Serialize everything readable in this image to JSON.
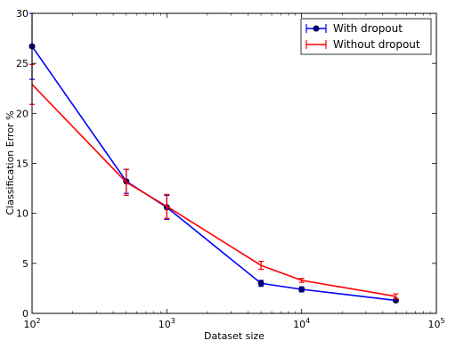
{
  "chart_data": {
    "type": "line",
    "title": "",
    "xlabel": "Dataset size",
    "ylabel": "Classification Error %",
    "xscale": "log",
    "xlim": [
      100,
      100000
    ],
    "ylim": [
      0,
      30
    ],
    "x_ticks": [
      {
        "value": 100,
        "base": "10",
        "exp": "2"
      },
      {
        "value": 1000,
        "base": "10",
        "exp": "3"
      },
      {
        "value": 10000,
        "base": "10",
        "exp": "4"
      },
      {
        "value": 100000,
        "base": "10",
        "exp": "5"
      }
    ],
    "y_ticks": [
      0,
      5,
      10,
      15,
      20,
      25,
      30
    ],
    "legend_position": "top-right",
    "grid": false,
    "series": [
      {
        "name": "With dropout",
        "color": "#0000ff",
        "marker": "circle",
        "x": [
          100,
          500,
          1000,
          5000,
          10000,
          50000
        ],
        "y": [
          26.7,
          13.2,
          10.6,
          3.0,
          2.4,
          1.3
        ],
        "err": [
          3.3,
          1.2,
          1.2,
          0.3,
          0.25,
          0.15
        ]
      },
      {
        "name": "Without dropout",
        "color": "#ff0000",
        "marker": "none",
        "x": [
          100,
          500,
          1000,
          5000,
          10000,
          50000
        ],
        "y": [
          22.9,
          13.1,
          10.7,
          4.8,
          3.3,
          1.7
        ],
        "err": [
          2.0,
          1.3,
          1.2,
          0.4,
          0.2,
          0.25
        ]
      }
    ]
  }
}
